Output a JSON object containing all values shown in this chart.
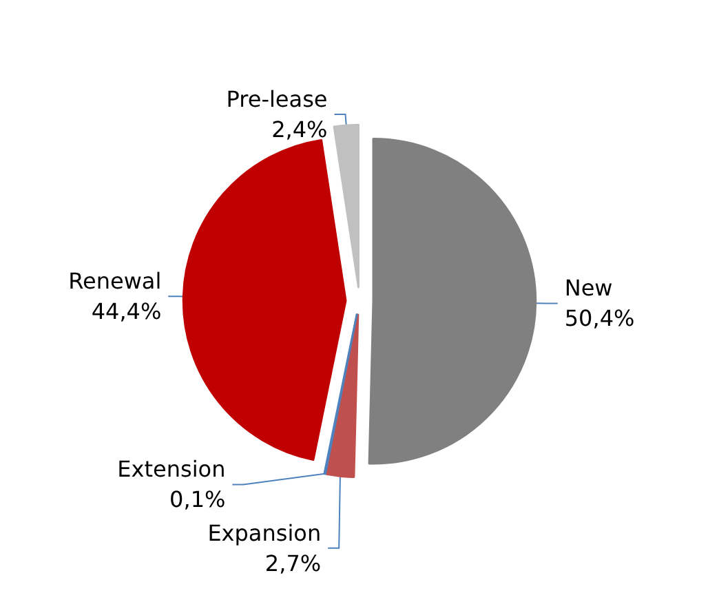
{
  "chart_data": {
    "type": "pie",
    "categories": [
      "New",
      "Expansion",
      "Extension",
      "Renewal",
      "Pre-lease"
    ],
    "values": [
      50.4,
      2.7,
      0.1,
      44.4,
      2.4
    ],
    "value_labels": [
      "50,4%",
      "2,7%",
      "0,1%",
      "44,4%",
      "2,4%"
    ],
    "colors": [
      "#808080",
      "#c0504d",
      "#4f81bd",
      "#c00000",
      "#c0c0c0"
    ]
  }
}
